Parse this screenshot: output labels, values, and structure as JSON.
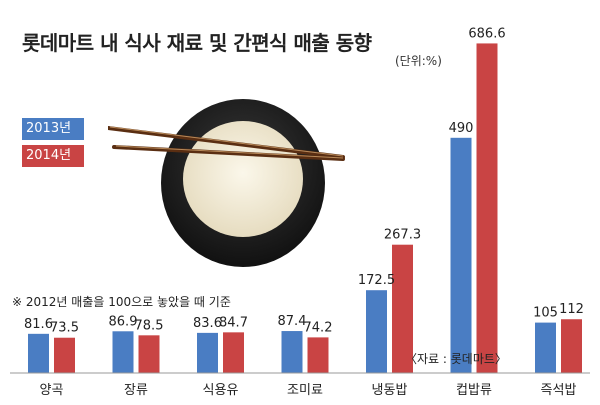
{
  "title": "롯데마트 내 식사 재료 및 간편식 매출 동향",
  "unit": "(단위:%)",
  "note": "※ 2012년 매출을 100으로 놓았을 때 기준",
  "source": "〈자료 : 롯데마트〉",
  "colors": {
    "s2013": "#4a7dc3",
    "s2014": "#c94444"
  },
  "chart_data": {
    "type": "bar",
    "title": "롯데마트 내 식사 재료 및 간편식 매출 동향",
    "categories": [
      "양곡",
      "장류",
      "식용유",
      "조미료",
      "냉동밥",
      "컵밥류",
      "즉석밥"
    ],
    "series": [
      {
        "name": "2013년",
        "values": [
          81.6,
          86.9,
          83.6,
          87.4,
          172.5,
          490,
          105
        ]
      },
      {
        "name": "2014년",
        "values": [
          73.5,
          78.5,
          84.7,
          74.2,
          267.3,
          686.6,
          112
        ]
      }
    ],
    "legend": "left"
  }
}
